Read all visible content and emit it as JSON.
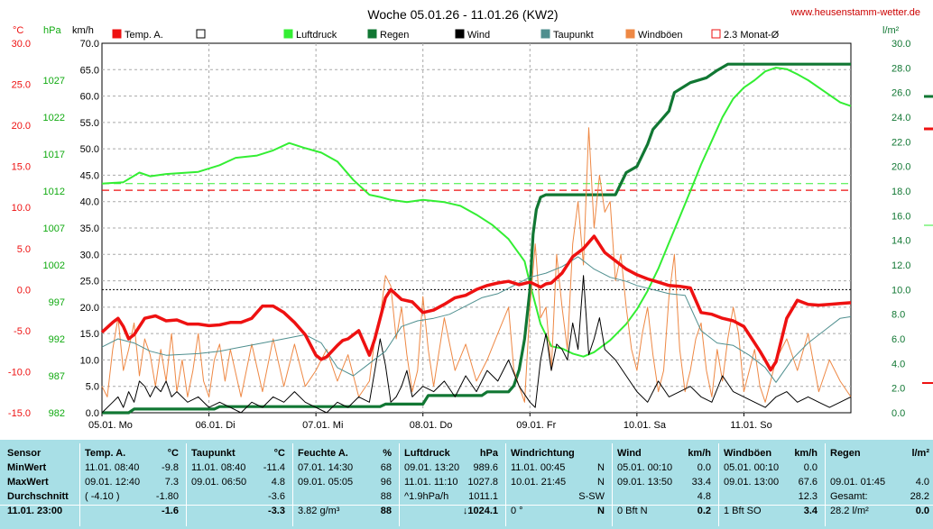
{
  "title": "Woche 05.01.26 - 11.01.26 (KW2)",
  "site": "www.heusenstamm-wetter.de",
  "units": {
    "temp": "°C",
    "pressure": "hPa",
    "wind": "km/h",
    "rain": "l/m²"
  },
  "legend": [
    {
      "label": "Temp. A.",
      "color": "#ee1111",
      "style": "filled"
    },
    {
      "label": "",
      "color": "#000000",
      "style": "empty"
    },
    {
      "label": "Luftdruck",
      "color": "#33ee33",
      "style": "filled"
    },
    {
      "label": "Regen",
      "color": "#117733",
      "style": "filled"
    },
    {
      "label": "Wind",
      "color": "#000000",
      "style": "filled"
    },
    {
      "label": "Taupunkt",
      "color": "#4f8f8f",
      "style": "filled"
    },
    {
      "label": "Windböen",
      "color": "#ee8844",
      "style": "filled"
    },
    {
      "label": "2.3 Monat-Ø",
      "color": "#ee1111",
      "style": "empty"
    }
  ],
  "chart_data": {
    "type": "line",
    "x_labels": [
      "05.01. Mo",
      "06.01. Di",
      "07.01. Mi",
      "08.01. Do",
      "09.01. Fr",
      "10.01. Sa",
      "11.01. So"
    ],
    "x_range": [
      0,
      7
    ],
    "axes": {
      "temp": {
        "min": -15,
        "max": 30,
        "ticks": [
          "30.0",
          "25.0",
          "20.0",
          "15.0",
          "10.0",
          "5.0",
          "0.0",
          "-5.0",
          "-10.0",
          "-15.0"
        ]
      },
      "pressure": {
        "min": 982,
        "max": 1032,
        "ticks": [
          "1027",
          "1022",
          "1017",
          "1012",
          "1007",
          "1002",
          "997",
          "992",
          "987",
          "982"
        ]
      },
      "wind": {
        "min": 0,
        "max": 70,
        "ticks": [
          "70.0",
          "65.0",
          "60.0",
          "55.0",
          "50.0",
          "45.0",
          "40.0",
          "35.0",
          "30.0",
          "25.0",
          "20.0",
          "15.0",
          "10.0",
          "5.0",
          "0.0"
        ]
      },
      "rain": {
        "min": 0,
        "max": 30,
        "ticks": [
          "30.0",
          "28.0",
          "26.0",
          "24.0",
          "22.0",
          "20.0",
          "18.0",
          "16.0",
          "14.0",
          "12.0",
          "10.0",
          "8.0",
          "6.0",
          "4.0",
          "2.0",
          "0.0"
        ]
      }
    },
    "reference_lines": {
      "temp_month_avg": 12.1,
      "pressure_ref": 1013,
      "zero_c": true
    },
    "series": [
      {
        "name": "Luftdruck",
        "axis": "pressure",
        "color": "#33ee33",
        "x": [
          0,
          0.2,
          0.35,
          0.45,
          0.6,
          0.9,
          1.1,
          1.25,
          1.45,
          1.6,
          1.75,
          1.9,
          2.05,
          2.2,
          2.35,
          2.5,
          2.6,
          2.7,
          2.85,
          3.0,
          3.2,
          3.35,
          3.5,
          3.65,
          3.8,
          3.95,
          4.0,
          4.1,
          4.2,
          4.3,
          4.4,
          4.5,
          4.6,
          4.75,
          4.9,
          5.0,
          5.1,
          5.2,
          5.3,
          5.4,
          5.5,
          5.6,
          5.7,
          5.8,
          5.9,
          6.0,
          6.1,
          6.2,
          6.3,
          6.4,
          6.5,
          6.6,
          6.75,
          6.9,
          7.0
        ],
        "y": [
          1013.0,
          1013.2,
          1014.5,
          1014.0,
          1014.3,
          1014.6,
          1015.5,
          1016.5,
          1016.8,
          1017.5,
          1018.5,
          1017.8,
          1017.2,
          1016.0,
          1013.5,
          1011.5,
          1011.2,
          1010.8,
          1010.5,
          1010.8,
          1010.5,
          1010.0,
          1008.8,
          1007.4,
          1005.5,
          1002.5,
          999.5,
          994.0,
          991.0,
          990.7,
          990.0,
          989.6,
          990.2,
          991.8,
          994.0,
          996.0,
          998.5,
          1001.5,
          1005.0,
          1008.5,
          1012.0,
          1015.6,
          1018.8,
          1022.0,
          1024.5,
          1026.0,
          1027.0,
          1028.2,
          1028.7,
          1028.5,
          1027.8,
          1027.0,
          1025.5,
          1024.0,
          1023.5
        ]
      },
      {
        "name": "Regen",
        "axis": "rain",
        "color": "#117733",
        "x": [
          0,
          0.25,
          0.3,
          1.05,
          1.1,
          2.6,
          2.65,
          3.0,
          3.05,
          3.55,
          3.6,
          3.8,
          3.85,
          3.9,
          3.95,
          4.0,
          4.03,
          4.06,
          4.1,
          4.15,
          4.2,
          4.25,
          4.35,
          4.45,
          4.55,
          4.65,
          4.8,
          4.9,
          5.0,
          5.1,
          5.15,
          5.2,
          5.3,
          5.35,
          5.5,
          5.65,
          5.75,
          5.85,
          6.0,
          6.5,
          7.0
        ],
        "y": [
          0,
          0,
          0.3,
          0.3,
          0.5,
          0.5,
          0.7,
          0.7,
          1.4,
          1.4,
          1.7,
          1.7,
          2.2,
          3.5,
          6.0,
          10.0,
          14.5,
          16.5,
          17.5,
          17.7,
          17.7,
          17.7,
          17.7,
          17.7,
          17.7,
          17.7,
          17.7,
          19.5,
          20.0,
          21.8,
          23.0,
          23.5,
          24.5,
          26.0,
          26.8,
          27.2,
          27.8,
          28.3,
          28.3,
          28.3,
          28.3
        ]
      },
      {
        "name": "Taupunkt",
        "axis": "temp",
        "color": "#4f8f8f",
        "x": [
          0,
          0.15,
          0.3,
          0.45,
          0.6,
          0.9,
          1.1,
          1.3,
          1.5,
          1.7,
          1.9,
          2.05,
          2.2,
          2.35,
          2.5,
          2.65,
          2.8,
          2.95,
          3.1,
          3.25,
          3.4,
          3.55,
          3.7,
          3.85,
          4.0,
          4.15,
          4.3,
          4.45,
          4.6,
          4.75,
          4.9,
          5.0,
          5.15,
          5.3,
          5.45,
          5.6,
          5.75,
          5.9,
          6.05,
          6.2,
          6.3,
          6.45,
          6.6,
          6.75,
          6.9,
          7.0
        ],
        "y": [
          -7,
          -6,
          -6.5,
          -7.5,
          -8,
          -7.8,
          -7.5,
          -7.0,
          -6.5,
          -6.0,
          -5.5,
          -6.5,
          -9.5,
          -10.5,
          -9.0,
          -7.5,
          -4.5,
          -3.8,
          -3.5,
          -3.0,
          -2.0,
          -1.0,
          -0.5,
          0.5,
          1.5,
          2.0,
          2.8,
          4.0,
          2.5,
          1.5,
          1.0,
          0.5,
          0,
          -0.5,
          -0.7,
          -5.0,
          -6.5,
          -6.8,
          -8.0,
          -9.5,
          -11.3,
          -8.5,
          -6.5,
          -5.0,
          -3.5,
          -3.3
        ]
      },
      {
        "name": "Temp. A.",
        "axis": "temp",
        "color": "#ee1111",
        "x": [
          0,
          0.1,
          0.15,
          0.2,
          0.25,
          0.3,
          0.4,
          0.5,
          0.6,
          0.7,
          0.8,
          0.9,
          1.0,
          1.1,
          1.2,
          1.3,
          1.4,
          1.5,
          1.6,
          1.7,
          1.8,
          1.9,
          2.0,
          2.05,
          2.1,
          2.15,
          2.2,
          2.25,
          2.3,
          2.4,
          2.5,
          2.55,
          2.6,
          2.65,
          2.7,
          2.8,
          2.9,
          3.0,
          3.1,
          3.2,
          3.3,
          3.4,
          3.5,
          3.6,
          3.7,
          3.8,
          3.9,
          4.0,
          4.1,
          4.15,
          4.2,
          4.3,
          4.4,
          4.5,
          4.6,
          4.7,
          4.8,
          4.9,
          5.0,
          5.1,
          5.2,
          5.3,
          5.4,
          5.45,
          5.5,
          5.6,
          5.7,
          5.8,
          5.9,
          6.0,
          6.1,
          6.15,
          6.2,
          6.25,
          6.3,
          6.4,
          6.5,
          6.6,
          6.7,
          6.8,
          6.9,
          7.0
        ],
        "y": [
          -5.2,
          -4.0,
          -3.5,
          -4.5,
          -6.0,
          -5.5,
          -3.5,
          -3.2,
          -3.8,
          -3.7,
          -4.2,
          -4.2,
          -4.4,
          -4.3,
          -4.0,
          -4.0,
          -3.5,
          -2.0,
          -2.0,
          -2.8,
          -4.0,
          -5.5,
          -8.0,
          -8.5,
          -8.2,
          -7.5,
          -6.8,
          -6.2,
          -6.0,
          -5.0,
          -8.0,
          -6.0,
          -3.5,
          -1.0,
          0.0,
          -1.2,
          -1.5,
          -2.8,
          -2.5,
          -1.8,
          -1.0,
          -0.7,
          0,
          0.5,
          0.8,
          1.0,
          0.6,
          0.9,
          0.3,
          0.7,
          0.8,
          2.0,
          4.0,
          5.0,
          6.5,
          4.5,
          3.5,
          2.5,
          1.8,
          1.3,
          0.9,
          0.5,
          0.4,
          0.3,
          0.2,
          -2.8,
          -3.0,
          -3.5,
          -3.8,
          -4.5,
          -6.5,
          -7.5,
          -8.6,
          -9.8,
          -8.8,
          -3.5,
          -1.3,
          -1.8,
          -1.9,
          -1.8,
          -1.7,
          -1.6
        ]
      },
      {
        "name": "Windböen",
        "axis": "wind",
        "color": "#ee8844",
        "x": [
          0,
          0.05,
          0.1,
          0.15,
          0.2,
          0.25,
          0.3,
          0.35,
          0.4,
          0.45,
          0.5,
          0.55,
          0.6,
          0.65,
          0.7,
          0.75,
          0.8,
          0.85,
          0.9,
          0.95,
          1.0,
          1.05,
          1.1,
          1.15,
          1.2,
          1.3,
          1.4,
          1.5,
          1.6,
          1.7,
          1.8,
          1.9,
          2.0,
          2.1,
          2.2,
          2.3,
          2.4,
          2.5,
          2.55,
          2.6,
          2.65,
          2.7,
          2.75,
          2.8,
          2.85,
          2.9,
          2.95,
          3.0,
          3.05,
          3.1,
          3.2,
          3.3,
          3.4,
          3.5,
          3.6,
          3.7,
          3.8,
          3.85,
          3.9,
          3.95,
          4.0,
          4.05,
          4.1,
          4.15,
          4.2,
          4.25,
          4.3,
          4.35,
          4.4,
          4.45,
          4.5,
          4.55,
          4.6,
          4.65,
          4.7,
          4.75,
          4.8,
          4.85,
          4.9,
          4.95,
          5.0,
          5.05,
          5.1,
          5.15,
          5.2,
          5.25,
          5.3,
          5.35,
          5.4,
          5.45,
          5.5,
          5.55,
          5.6,
          5.65,
          5.7,
          5.75,
          5.8,
          5.85,
          5.9,
          5.95,
          6.0,
          6.05,
          6.1,
          6.15,
          6.2,
          6.3,
          6.4,
          6.5,
          6.6,
          6.7,
          6.8,
          6.9,
          7.0
        ],
        "y": [
          5,
          3,
          12,
          18,
          8,
          12,
          17,
          7,
          14,
          11,
          5,
          12,
          6,
          15,
          4,
          10,
          3,
          8,
          15,
          6,
          3,
          10,
          13,
          6,
          12,
          3,
          13,
          4,
          14,
          5,
          13,
          5,
          8,
          12,
          6,
          11,
          3,
          6,
          14,
          18,
          26,
          24,
          14,
          20,
          11,
          4,
          8,
          22,
          12,
          5,
          18,
          8,
          13,
          6,
          10,
          15,
          20,
          8,
          5,
          2,
          20,
          32,
          18,
          20,
          8,
          30,
          20,
          12,
          32,
          40,
          28,
          54,
          35,
          45,
          38,
          40,
          25,
          30,
          20,
          12,
          8,
          15,
          20,
          11,
          4,
          8,
          22,
          30,
          12,
          4,
          8,
          14,
          17,
          8,
          3,
          12,
          6,
          14,
          20,
          15,
          4,
          8,
          12,
          5,
          2,
          10,
          14,
          8,
          15,
          4,
          10,
          6,
          3
        ]
      },
      {
        "name": "Wind",
        "axis": "wind",
        "color": "#000000",
        "x": [
          0,
          0.1,
          0.15,
          0.2,
          0.25,
          0.3,
          0.35,
          0.4,
          0.45,
          0.5,
          0.55,
          0.6,
          0.65,
          0.7,
          0.8,
          0.9,
          1.0,
          1.1,
          1.2,
          1.3,
          1.4,
          1.5,
          1.6,
          1.7,
          1.8,
          1.9,
          2.0,
          2.1,
          2.2,
          2.3,
          2.4,
          2.5,
          2.55,
          2.6,
          2.65,
          2.7,
          2.75,
          2.8,
          2.85,
          2.9,
          3.0,
          3.1,
          3.2,
          3.3,
          3.4,
          3.5,
          3.6,
          3.7,
          3.8,
          3.9,
          4.0,
          4.05,
          4.1,
          4.15,
          4.2,
          4.25,
          4.3,
          4.35,
          4.4,
          4.45,
          4.5,
          4.55,
          4.6,
          4.65,
          4.7,
          4.8,
          4.9,
          5.0,
          5.1,
          5.2,
          5.3,
          5.4,
          5.5,
          5.6,
          5.7,
          5.8,
          5.9,
          6.0,
          6.1,
          6.2,
          6.3,
          6.4,
          6.5,
          6.6,
          6.7,
          6.8,
          6.9,
          7.0
        ],
        "y": [
          0,
          2,
          3,
          1,
          4,
          2,
          6,
          5,
          3,
          5,
          4,
          6,
          3,
          4,
          2,
          3,
          1,
          2,
          1,
          0,
          2,
          1,
          3,
          2,
          4,
          2,
          1,
          0,
          2,
          1,
          3,
          2,
          8,
          14,
          9,
          2,
          3,
          5,
          8,
          3,
          5,
          4,
          6,
          3,
          7,
          4,
          8,
          6,
          10,
          5,
          2,
          1,
          10,
          15,
          8,
          13,
          12,
          10,
          17,
          12,
          26,
          11,
          14,
          18,
          12,
          10,
          7,
          4,
          2,
          6,
          3,
          4,
          5,
          3,
          2,
          7,
          4,
          3,
          2,
          1,
          3,
          4,
          2,
          3,
          2,
          1,
          2,
          3
        ]
      }
    ]
  },
  "table": {
    "headers": [
      {
        "label": "Sensor",
        "unit": ""
      },
      {
        "label": "Temp. A.",
        "unit": "°C"
      },
      {
        "label": "Taupunkt",
        "unit": "°C"
      },
      {
        "label": "Feuchte A.",
        "unit": "%"
      },
      {
        "label": "Luftdruck",
        "unit": "hPa"
      },
      {
        "label": "Windrichtung",
        "unit": ""
      },
      {
        "label": "Wind",
        "unit": "km/h"
      },
      {
        "label": "Windböen",
        "unit": "km/h"
      },
      {
        "label": "Regen",
        "unit": "l/m²"
      }
    ],
    "row_labels": [
      "MinWert",
      "MaxWert",
      "Durchschnitt",
      "11.01. 23:00"
    ],
    "cells": [
      [
        {
          "l": "11.01.  08:40",
          "r": "-9.8"
        },
        {
          "l": "11.01.  08:40",
          "r": "-11.4"
        },
        {
          "l": "07.01.  14:30",
          "r": "68"
        },
        {
          "l": "09.01.  13:20",
          "r": "989.6"
        },
        {
          "l": "11.01.  00:45",
          "r": "N"
        },
        {
          "l": "05.01.  00:10",
          "r": "0.0"
        },
        {
          "l": "05.01.  00:10",
          "r": "0.0"
        },
        {
          "l": "",
          "r": ""
        }
      ],
      [
        {
          "l": "09.01.  12:40",
          "r": "7.3"
        },
        {
          "l": "09.01.  06:50",
          "r": "4.8"
        },
        {
          "l": "09.01.  05:05",
          "r": "96"
        },
        {
          "l": "11.01.  11:10",
          "r": "1027.8"
        },
        {
          "l": "10.01.  21:45",
          "r": "N"
        },
        {
          "l": "09.01.  13:50",
          "r": "33.4"
        },
        {
          "l": "09.01.  13:00",
          "r": "67.6"
        },
        {
          "l": "09.01.  01:45",
          "r": "4.0"
        }
      ],
      [
        {
          "l": "( -4.10 )",
          "r": "-1.80"
        },
        {
          "l": "",
          "r": "-3.6"
        },
        {
          "l": "",
          "r": "88"
        },
        {
          "l": "^1.9hPa/h",
          "r": "1011.1"
        },
        {
          "l": "",
          "r": "S-SW"
        },
        {
          "l": "",
          "r": "4.8"
        },
        {
          "l": "",
          "r": "12.3"
        },
        {
          "l": "Gesamt:",
          "r": "28.2"
        }
      ],
      [
        {
          "l": "",
          "r": "-1.6"
        },
        {
          "l": "",
          "r": "-3.3"
        },
        {
          "l": "3.82 g/m³",
          "r": "88"
        },
        {
          "l": "",
          "r": "↓1024.1"
        },
        {
          "l": "0 °",
          "r": "N"
        },
        {
          "l": "0 Bft N",
          "r": "0.2"
        },
        {
          "l": "1 Bft SO",
          "r": "3.4"
        },
        {
          "l": "28.2 l/m²",
          "r": "0.0"
        }
      ]
    ]
  }
}
